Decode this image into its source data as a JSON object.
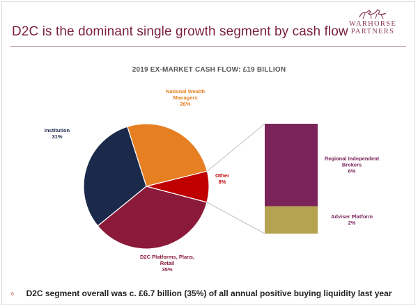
{
  "slide": {
    "title": "D2C is the dominant single growth segment by cash flow",
    "logo": {
      "line1": "WARHORSE",
      "line2": "PARTNERS"
    },
    "footer": "D2C segment overall was  c. £6.7 billion (35%) of all annual positive buying liquidity last year",
    "page_number": "6"
  },
  "chart_data": {
    "type": "pie",
    "title": "2019 EX-MARKET CASH FLOW: £19 BILLION",
    "slices": [
      {
        "name": "National Wealth Managers",
        "label_lines": [
          "National Wealth",
          "Managers"
        ],
        "value_label": "26%",
        "value": 26,
        "color": "#e67e22"
      },
      {
        "name": "Other",
        "label_lines": [
          "Other"
        ],
        "value_label": "8%",
        "value": 8,
        "color": "#c00000"
      },
      {
        "name": "D2C Platforms, Plans, Retail",
        "label_lines": [
          "D2C Platforms, Plans,",
          "Retail"
        ],
        "value_label": "35%",
        "value": 35,
        "color": "#8b1a3a"
      },
      {
        "name": "Institution",
        "label_lines": [
          "Institution"
        ],
        "value_label": "31%",
        "value": 31,
        "color": "#1b2a4a"
      }
    ],
    "breakdown": {
      "of": "Other",
      "segments": [
        {
          "name": "Regional Independent Brokers",
          "label_lines": [
            "Regional Independent",
            "Brokers"
          ],
          "value_label": "6%",
          "value": 6,
          "color": "#7b245b"
        },
        {
          "name": "Adviser Platform",
          "label_lines": [
            "Adviser Platform"
          ],
          "value_label": "2%",
          "value": 2,
          "color": "#b5a352"
        }
      ]
    }
  }
}
